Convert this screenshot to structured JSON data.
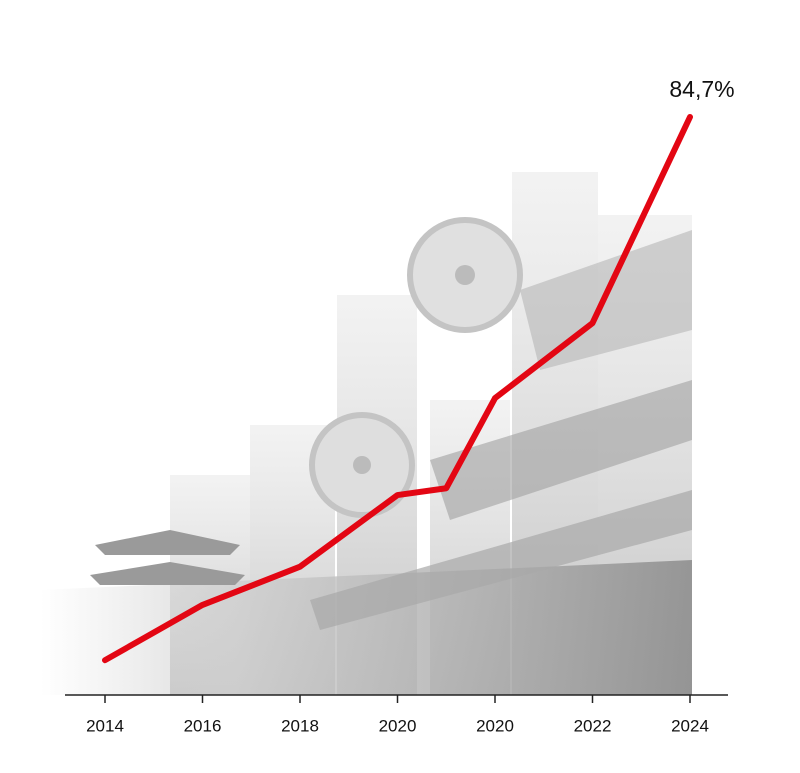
{
  "chart_data": {
    "type": "line",
    "categories": [
      "2014",
      "2016",
      "2018",
      "2020",
      null,
      "2020",
      "2022",
      "2024"
    ],
    "series": [
      {
        "color": "#e30613",
        "values": [
          5.1,
          13.2,
          18.8,
          29.3,
          30.3,
          43.5,
          54.5,
          84.7
        ],
        "value_labels": [
          null,
          null,
          null,
          null,
          null,
          null,
          null,
          "84,7%"
        ]
      }
    ],
    "ylim": [
      0,
      84.7
    ]
  }
}
